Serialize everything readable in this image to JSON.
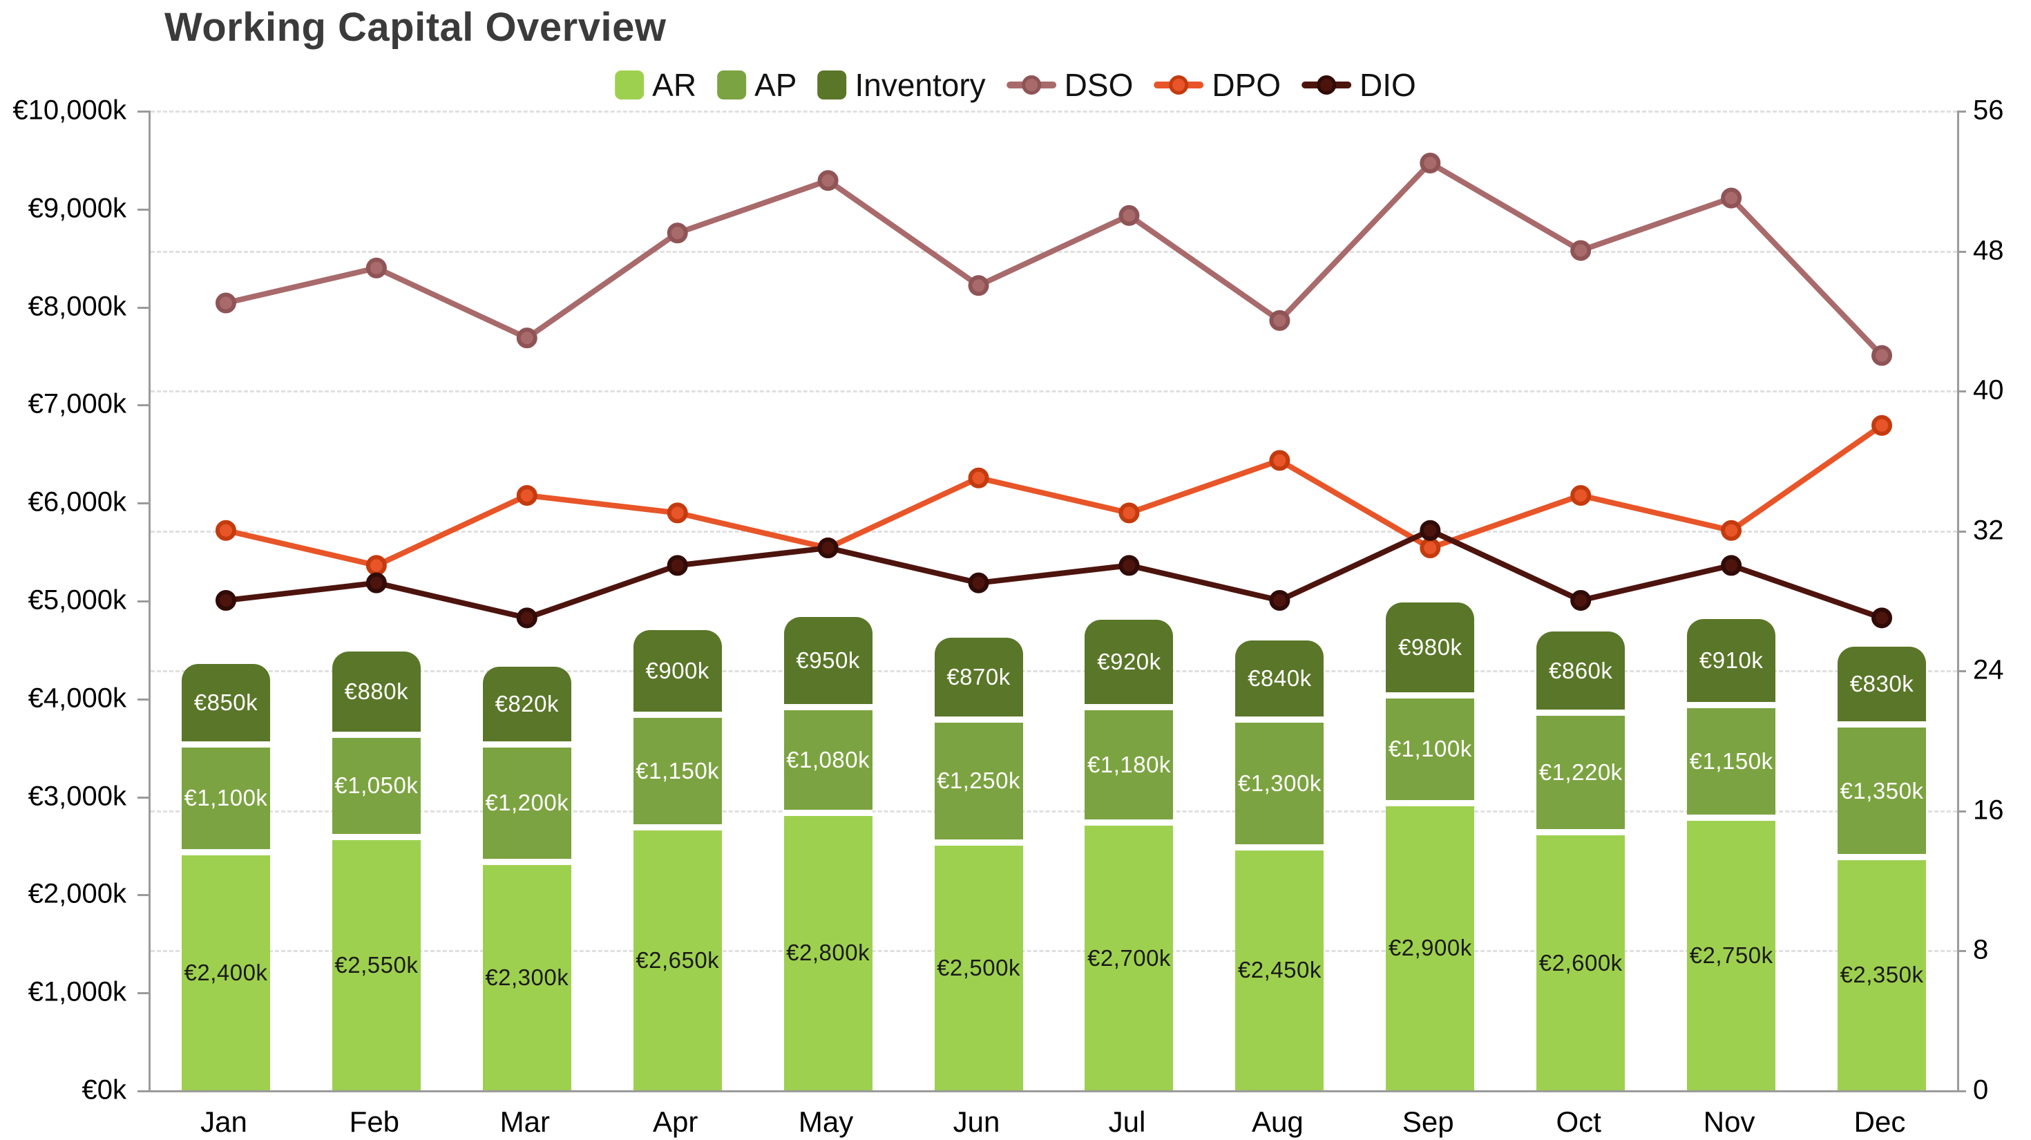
{
  "title": "Working Capital Overview",
  "legend": {
    "items": [
      {
        "label": "AR",
        "type": "box",
        "color": "#9ed04f"
      },
      {
        "label": "AP",
        "type": "box",
        "color": "#7ca341"
      },
      {
        "label": "Inventory",
        "type": "box",
        "color": "#5a7628"
      },
      {
        "label": "DSO",
        "type": "line",
        "color": "#a86a6b",
        "ring": "#8f5456"
      },
      {
        "label": "DPO",
        "type": "line",
        "color": "#e85528",
        "ring": "#c33b0e"
      },
      {
        "label": "DIO",
        "type": "line",
        "color": "#4d140e",
        "ring": "#300b07"
      }
    ]
  },
  "chart_data": {
    "type": "combo: stacked bar (left axis) + line (right axis)",
    "title": "Working Capital Overview",
    "categories": [
      "Jan",
      "Feb",
      "Mar",
      "Apr",
      "May",
      "Jun",
      "Jul",
      "Aug",
      "Sep",
      "Oct",
      "Nov",
      "Dec"
    ],
    "bar_series": [
      {
        "name": "AR",
        "color": "#9ed04f",
        "label_color": "#1a1a1a",
        "values": [
          2400,
          2550,
          2300,
          2650,
          2800,
          2500,
          2700,
          2450,
          2900,
          2600,
          2750,
          2350
        ],
        "labels": [
          "€2,400k",
          "€2,550k",
          "€2,300k",
          "€2,650k",
          "€2,800k",
          "€2,500k",
          "€2,700k",
          "€2,450k",
          "€2,900k",
          "€2,600k",
          "€2,750k",
          "€2,350k"
        ]
      },
      {
        "name": "AP",
        "color": "#7ca341",
        "label_color": "#ffffff",
        "values": [
          1100,
          1050,
          1200,
          1150,
          1080,
          1250,
          1180,
          1300,
          1100,
          1220,
          1150,
          1350
        ],
        "labels": [
          "€1,100k",
          "€1,050k",
          "€1,200k",
          "€1,150k",
          "€1,080k",
          "€1,250k",
          "€1,180k",
          "€1,300k",
          "€1,100k",
          "€1,220k",
          "€1,150k",
          "€1,350k"
        ]
      },
      {
        "name": "Inventory",
        "color": "#5a7628",
        "label_color": "#ffffff",
        "values": [
          850,
          880,
          820,
          900,
          950,
          870,
          920,
          840,
          980,
          860,
          910,
          830
        ],
        "labels": [
          "€850k",
          "€880k",
          "€820k",
          "€900k",
          "€950k",
          "€870k",
          "€920k",
          "€840k",
          "€980k",
          "€860k",
          "€910k",
          "€830k"
        ]
      }
    ],
    "line_series": [
      {
        "name": "DSO",
        "axis": "right",
        "color": "#a86a6b",
        "marker_ring": "#8f5456",
        "values": [
          45,
          47,
          43,
          49,
          52,
          46,
          50,
          44,
          53,
          48,
          51,
          42
        ]
      },
      {
        "name": "DPO",
        "axis": "right",
        "color": "#e85528",
        "marker_ring": "#c33b0e",
        "values": [
          32,
          30,
          34,
          33,
          31,
          35,
          33,
          36,
          31,
          34,
          32,
          38
        ]
      },
      {
        "name": "DIO",
        "axis": "right",
        "color": "#4d140e",
        "marker_ring": "#300b07",
        "values": [
          28,
          29,
          27,
          30,
          31,
          29,
          30,
          28,
          32,
          28,
          30,
          27
        ]
      }
    ],
    "left_axis": {
      "min": 0,
      "max": 10000,
      "step": 1000,
      "unit": "€k",
      "tick_labels": [
        "€0k",
        "€1,000k",
        "€2,000k",
        "€3,000k",
        "€4,000k",
        "€5,000k",
        "€6,000k",
        "€7,000k",
        "€8,000k",
        "€9,000k",
        "€10,000k"
      ]
    },
    "right_axis": {
      "min": 0,
      "max": 56,
      "step": 8,
      "tick_labels": [
        "0",
        "8",
        "16",
        "24",
        "32",
        "40",
        "48",
        "56"
      ]
    },
    "grid": {
      "horizontal": "dashed at right-axis steps",
      "vertical": false
    },
    "legend_position": "top",
    "stacked_total_range": [
      0,
      10000
    ]
  }
}
